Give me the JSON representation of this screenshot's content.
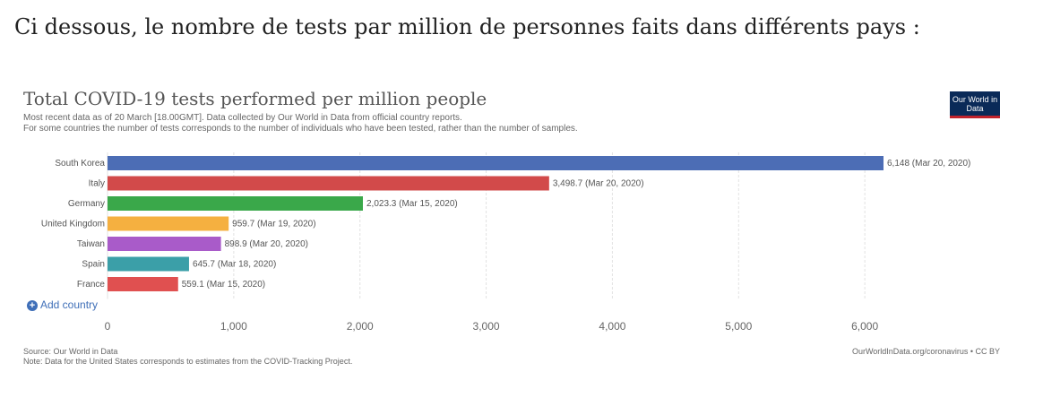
{
  "intro_text": "Ci dessous, le nombre de tests par million de personnes faits dans différents pays :",
  "chart_data": {
    "type": "bar",
    "orientation": "horizontal",
    "title": "Total COVID-19 tests performed per million people",
    "subtitle_lines": [
      "Most recent data as of 20 March [18.00GMT]. Data collected by Our World in Data from official country reports.",
      "For some countries the number of tests corresponds to the number of individuals who have been tested, rather than the number of samples."
    ],
    "categories": [
      "South Korea",
      "Italy",
      "Germany",
      "United Kingdom",
      "Taiwan",
      "Spain",
      "France"
    ],
    "values": [
      6148,
      3498.7,
      2023.3,
      959.7,
      898.9,
      645.7,
      559.1
    ],
    "value_labels": [
      "6,148 (Mar 20, 2020)",
      "3,498.7 (Mar 20, 2020)",
      "2,023.3 (Mar 15, 2020)",
      "959.7 (Mar 19, 2020)",
      "898.9 (Mar 20, 2020)",
      "645.7 (Mar 18, 2020)",
      "559.1 (Mar 15, 2020)"
    ],
    "colors": [
      "#4c6db5",
      "#d24a4a",
      "#3aa84a",
      "#f5b040",
      "#a95bc9",
      "#3b9fa8",
      "#e05050"
    ],
    "xlim": [
      0,
      6148
    ],
    "xticks": [
      0,
      1000,
      2000,
      3000,
      4000,
      5000,
      6000
    ],
    "xtick_labels": [
      "0",
      "1,000",
      "2,000",
      "3,000",
      "4,000",
      "5,000",
      "6,000"
    ],
    "grid": true
  },
  "logo_text": "Our World in Data",
  "add_country_label": "Add country",
  "source_lines": [
    "Source: Our World in Data",
    "Note: Data for the United States corresponds to estimates from the COVID-Tracking Project."
  ],
  "credit": "OurWorldInData.org/coronavirus • CC BY"
}
